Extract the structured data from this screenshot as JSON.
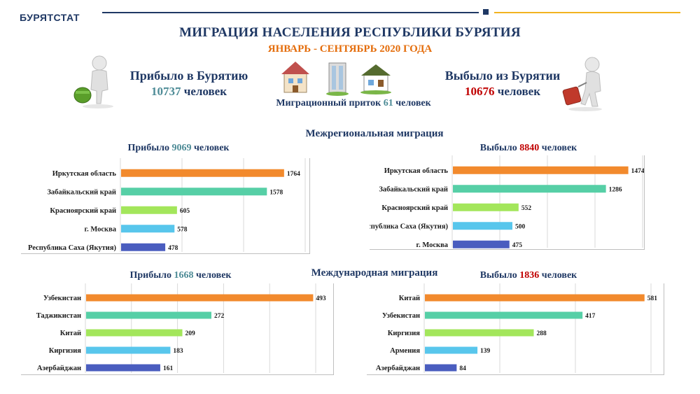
{
  "header": {
    "org": "БУРЯТСТАТ",
    "title": "МИГРАЦИЯ НАСЕЛЕНИЯ РЕСПУБЛИКИ БУРЯТИЯ",
    "subtitle": "ЯНВАРЬ - СЕНТЯБРЬ 2020 ГОДА"
  },
  "summary": {
    "arrived_label": "Прибыло в Бурятию",
    "arrived_value": "10737",
    "arrived_unit": " человек",
    "departed_label": "Выбыло из Бурятии",
    "departed_value": "10676",
    "departed_unit": " человек",
    "inflow_label": "Миграционный приток ",
    "inflow_value": "61",
    "inflow_unit": " человек"
  },
  "sections": {
    "interregional": "Межрегиональная миграция",
    "international": "Международная миграция"
  },
  "colors": [
    "#f28a2d",
    "#56cfa6",
    "#a3e65b",
    "#58c6ec",
    "#4a5dbf"
  ],
  "chart_data": [
    {
      "type": "bar",
      "title_prefix": "Прибыло ",
      "title_value": "9069",
      "title_suffix": " человек",
      "categories": [
        "Иркутская область",
        "Забайкальский край",
        "Красноярский край",
        "г. Москва",
        "Республика Саха (Якутия)"
      ],
      "values": [
        1764,
        1578,
        605,
        578,
        478
      ],
      "xlim": [
        0,
        2000
      ],
      "grid": true
    },
    {
      "type": "bar",
      "title_prefix": "Выбыло ",
      "title_value": "8840",
      "title_suffix": " человек",
      "categories": [
        "Иркутская область",
        "Забайкальский край",
        "Красноярский край",
        "Республика Саха (Якутия)",
        "г. Москва"
      ],
      "values": [
        1474,
        1286,
        552,
        500,
        475
      ],
      "xlim": [
        0,
        1600
      ],
      "grid": true
    },
    {
      "type": "bar",
      "title_prefix": "Прибыло ",
      "title_value": "1668",
      "title_suffix": " человек",
      "categories": [
        "Узбекистан",
        "Таджикистан",
        "Китай",
        "Киргизия",
        "Азербайджан"
      ],
      "values": [
        493,
        272,
        209,
        183,
        161
      ],
      "xlim": [
        0,
        500
      ],
      "grid": true
    },
    {
      "type": "bar",
      "title_prefix": "Выбыло ",
      "title_value": "1836",
      "title_suffix": " человек",
      "categories": [
        "Китай",
        "Узбекистан",
        "Киргизия",
        "Армения",
        "Азербайджан"
      ],
      "values": [
        581,
        417,
        288,
        139,
        84
      ],
      "xlim": [
        0,
        600
      ],
      "grid": true
    }
  ]
}
